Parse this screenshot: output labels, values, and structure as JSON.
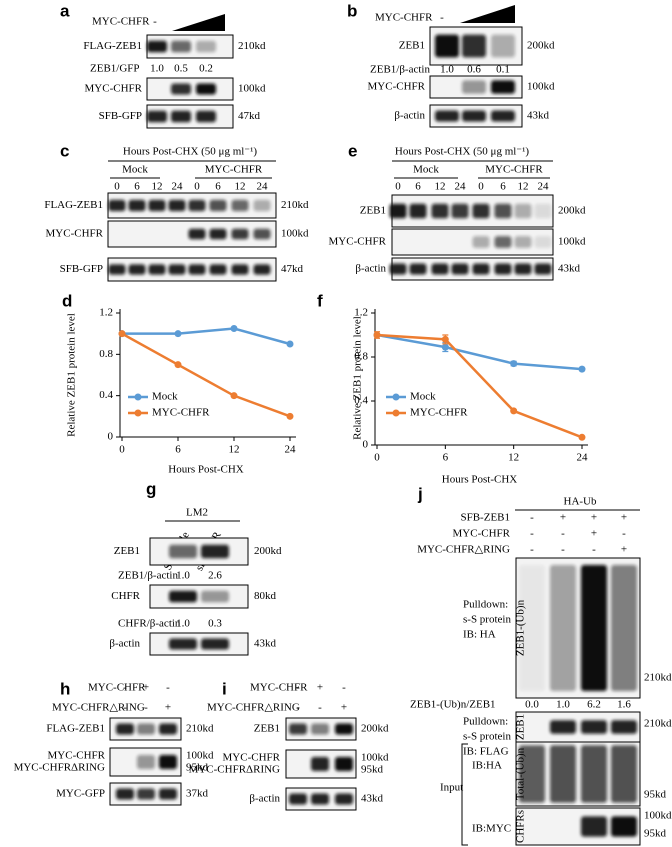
{
  "panels": {
    "a": {
      "letter": "a",
      "treatment": "MYC-CHFR",
      "control": "-",
      "blots": [
        {
          "label": "FLAG-ZEB1",
          "size": "210kd"
        },
        {
          "label": "MYC-CHFR",
          "size": "100kd"
        },
        {
          "label": "SFB-GFP",
          "size": "47kd"
        }
      ],
      "quant": {
        "label": "ZEB1/GFP",
        "values": [
          "1.0",
          "0.5",
          "0.2"
        ]
      }
    },
    "b": {
      "letter": "b",
      "treatment": "MYC-CHFR",
      "control": "-",
      "blots": [
        {
          "label": "ZEB1",
          "size": "200kd"
        },
        {
          "label": "MYC-CHFR",
          "size": "100kd"
        },
        {
          "label": "β-actin",
          "size": "43kd"
        }
      ],
      "quant": {
        "label": "ZEB1/β-actin",
        "values": [
          "1.0",
          "0.6",
          "0.1"
        ]
      }
    },
    "c": {
      "letter": "c",
      "header": "Hours Post-CHX (50 μg ml⁻¹)",
      "groups": [
        "Mock",
        "MYC-CHFR"
      ],
      "lanes": [
        "0",
        "6",
        "12",
        "24",
        "0",
        "6",
        "12",
        "24"
      ],
      "blots": [
        {
          "label": "FLAG-ZEB1",
          "size": "210kd"
        },
        {
          "label": "MYC-CHFR",
          "size": "100kd"
        },
        {
          "label": "SFB-GFP",
          "size": "47kd"
        }
      ]
    },
    "e": {
      "letter": "e",
      "header": "Hours Post-CHX (50 μg ml⁻¹)",
      "groups": [
        "Mock",
        "MYC-CHFR"
      ],
      "lanes": [
        "0",
        "6",
        "12",
        "24",
        "0",
        "6",
        "12",
        "24"
      ],
      "blots": [
        {
          "label": "ZEB1",
          "size": "200kd"
        },
        {
          "label": "MYC-CHFR",
          "size": "100kd"
        },
        {
          "label": "β-actin",
          "size": "43kd"
        }
      ]
    },
    "g": {
      "letter": "g",
      "cell_line": "LM2",
      "lanes": [
        "Scramble",
        "sh-CHFR"
      ],
      "blots": [
        {
          "label": "ZEB1",
          "size": "200kd"
        },
        {
          "label": "CHFR",
          "size": "80kd"
        },
        {
          "label": "β-actin",
          "size": "43kd"
        }
      ],
      "quants": [
        {
          "label": "ZEB1/β-actin",
          "values": [
            "1.0",
            "2.6"
          ]
        },
        {
          "label": "CHFR/β-actin",
          "values": [
            "1.0",
            "0.3"
          ]
        }
      ]
    },
    "h": {
      "letter": "h",
      "conditions": [
        {
          "label": "MYC-CHFR",
          "signs": [
            "-",
            "+",
            "-"
          ]
        },
        {
          "label": "MYC-CHFR△RING",
          "signs": [
            "-",
            "-",
            "+"
          ]
        }
      ],
      "blots": [
        {
          "labels": [
            "FLAG-ZEB1"
          ],
          "sizes": [
            "210kd"
          ]
        },
        {
          "labels": [
            "MYC-CHFR",
            "MYC-CHFRΔRING"
          ],
          "sizes": [
            "100kd",
            "95kd"
          ]
        },
        {
          "labels": [
            "MYC-GFP"
          ],
          "sizes": [
            "37kd"
          ]
        }
      ]
    },
    "i": {
      "letter": "i",
      "conditions": [
        {
          "label": "MYC-CHFR",
          "signs": [
            "-",
            "+",
            "-"
          ]
        },
        {
          "label": "MYC-CHFR△RING",
          "signs": [
            "-",
            "-",
            "+"
          ]
        }
      ],
      "blots": [
        {
          "labels": [
            "ZEB1"
          ],
          "sizes": [
            "200kd"
          ]
        },
        {
          "labels": [
            "MYC-CHFR",
            "MYC-CHFRΔRING"
          ],
          "sizes": [
            "100kd",
            "95kd"
          ]
        },
        {
          "labels": [
            "β-actin"
          ],
          "sizes": [
            "43kd"
          ]
        }
      ]
    },
    "j": {
      "letter": "j",
      "group": "HA-Ub",
      "conditions": [
        {
          "label": "SFB-ZEB1",
          "signs": [
            "-",
            "+",
            "+",
            "+"
          ]
        },
        {
          "label": "MYC-CHFR",
          "signs": [
            "-",
            "-",
            "+",
            "-"
          ]
        },
        {
          "label": "MYC-CHFR△RING",
          "signs": [
            "-",
            "-",
            "-",
            "+"
          ]
        }
      ],
      "blots": [
        {
          "method": [
            "Pulldown:",
            "s-S protein",
            "IB: HA"
          ],
          "target": "ZEB1-(Ub)n",
          "sizes": [
            "210kd"
          ]
        },
        {
          "method": [
            "Pulldown:",
            "s-S  protein",
            "IB: FLAG"
          ],
          "target": "ZEB1",
          "sizes": [
            "210kd"
          ]
        },
        {
          "method": [
            "IB:HA"
          ],
          "target": "Total-(Ub)n",
          "sizes": [
            "95kd"
          ]
        },
        {
          "method": [
            "IB:MYC"
          ],
          "target": "CHFRs",
          "sizes": [
            "100kd",
            "95kd"
          ]
        }
      ],
      "input_label": "Input",
      "quant": {
        "label": "ZEB1-(Ub)n/ZEB1",
        "values": [
          "0.0",
          "1.0",
          "6.2",
          "1.6"
        ]
      }
    }
  },
  "chart_data": [
    {
      "type": "line",
      "letter": "d",
      "x_label": "Hours Post-CHX",
      "y_label": "Relative ZEB1 protein level",
      "categories": [
        "0",
        "6",
        "12",
        "24"
      ],
      "ylim": [
        0,
        1.2
      ],
      "yticks": [
        0,
        0.4,
        0.8,
        1.2
      ],
      "grid": false,
      "legend": "lower left",
      "series": [
        {
          "name": "Mock",
          "color": "#5b9bd5",
          "values": [
            1.0,
            1.0,
            1.05,
            0.9
          ]
        },
        {
          "name": "MYC-CHFR",
          "color": "#ed7d31",
          "values": [
            1.0,
            0.7,
            0.4,
            0.2
          ]
        }
      ]
    },
    {
      "type": "line",
      "letter": "f",
      "x_label": "Hours Post-CHX",
      "y_label": "Relative ZEB1 protein level",
      "categories": [
        "0",
        "6",
        "12",
        "24"
      ],
      "ylim": [
        0,
        1.2
      ],
      "yticks": [
        0,
        0.4,
        0.8,
        1.2
      ],
      "grid": false,
      "legend": "lower left",
      "series": [
        {
          "name": "Mock",
          "color": "#5b9bd5",
          "values": [
            1.0,
            0.89,
            0.74,
            0.69
          ],
          "errors": [
            0.0,
            0.04,
            0.02,
            0.01
          ]
        },
        {
          "name": "MYC-CHFR",
          "color": "#ed7d31",
          "values": [
            1.0,
            0.96,
            0.31,
            0.07
          ],
          "errors": [
            0.03,
            0.04,
            0.01,
            0.01
          ]
        }
      ]
    }
  ]
}
